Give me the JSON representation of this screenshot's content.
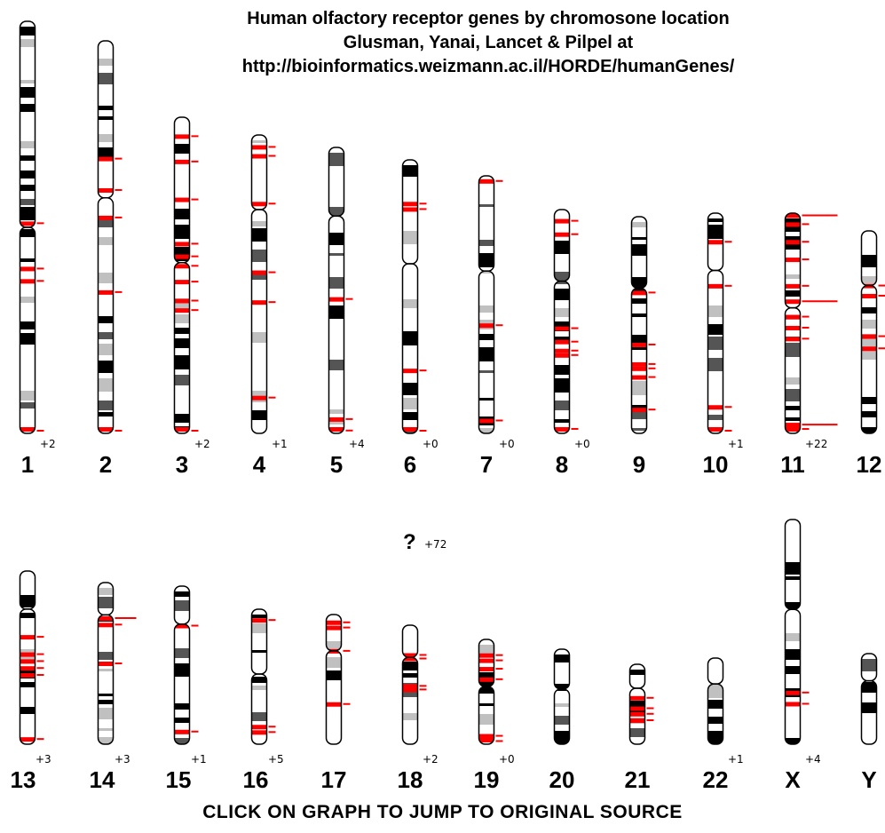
{
  "header": {
    "title_line1": "Human olfactory receptor genes by chromosone location",
    "title_line2": "Glusman, Yanai, Lancet & Pilpel at",
    "title_line3": "http://bioinformatics.weizmann.ac.il/HORDE/humanGenes/"
  },
  "footer": {
    "text": "CLICK ON GRAPH TO JUMP TO ORIGINAL SOURCE"
  },
  "unplaced": {
    "symbol": "?",
    "extra": "+72"
  },
  "colors": {
    "ink": "#000000",
    "dark_band": "#000000",
    "mid_band": "#555555",
    "light_band": "#c0c0c0",
    "gene": "#ff0000",
    "page": "#ffffff"
  },
  "chromosomes": [
    {
      "name": "1",
      "extra": "+2",
      "row": 0,
      "centromere": 0.5,
      "genes": [
        0.49,
        0.6,
        0.63,
        1.0
      ]
    },
    {
      "name": "2",
      "extra": "",
      "row": 0,
      "centromere": 0.4,
      "genes": [
        0.3,
        0.38,
        0.45,
        0.64,
        1.0
      ]
    },
    {
      "name": "3",
      "extra": "+2",
      "row": 0,
      "centromere": 0.46,
      "genes": [
        0.06,
        0.14,
        0.26,
        0.4,
        0.44,
        0.47,
        0.52,
        0.58,
        0.61,
        1.0
      ]
    },
    {
      "name": "4",
      "extra": "+1",
      "row": 0,
      "centromere": 0.25,
      "genes": [
        0.04,
        0.07,
        0.23,
        0.46,
        0.56,
        0.88
      ]
    },
    {
      "name": "5",
      "extra": "+4",
      "row": 0,
      "centromere": 0.24,
      "genes": [
        0.53,
        0.95,
        0.99
      ]
    },
    {
      "name": "6",
      "extra": "+0",
      "row": 0,
      "centromere": 0.38,
      "genes": [
        0.16,
        0.18,
        0.77,
        1.0
      ]
    },
    {
      "name": "7",
      "extra": "+0",
      "row": 0,
      "centromere": 0.37,
      "genes": [
        0.02,
        0.58,
        0.95
      ]
    },
    {
      "name": "8",
      "extra": "+0",
      "row": 0,
      "centromere": 0.32,
      "genes": [
        0.05,
        0.11,
        0.53,
        0.59,
        0.63,
        0.65,
        0.98
      ]
    },
    {
      "name": "9",
      "extra": "",
      "row": 0,
      "centromere": 0.33,
      "genes": [
        0.35,
        0.59,
        0.68,
        0.7,
        0.74,
        0.89
      ]
    },
    {
      "name": "10",
      "extra": "+1",
      "row": 0,
      "centromere": 0.26,
      "genes": [
        0.13,
        0.33,
        0.88,
        1.0
      ]
    },
    {
      "name": "11",
      "extra": "+22",
      "row": 0,
      "centromere": 0.43,
      "genes": [
        0.01,
        0.05,
        0.13,
        0.21,
        0.33,
        0.4,
        0.47,
        0.52,
        0.57,
        0.96,
        0.98
      ]
    },
    {
      "name": "12",
      "extra": "",
      "row": 0,
      "centromere": 0.27,
      "genes": [
        0.27,
        0.32,
        0.52,
        0.58
      ]
    },
    {
      "name": "13",
      "extra": "+3",
      "row": 1,
      "centromere": 0.22,
      "genes": [
        0.38,
        0.48,
        0.52,
        0.56,
        0.6,
        0.97
      ]
    },
    {
      "name": "14",
      "extra": "+3",
      "row": 1,
      "centromere": 0.2,
      "genes": [
        0.22,
        0.26,
        0.5
      ]
    },
    {
      "name": "15",
      "extra": "+1",
      "row": 1,
      "centromere": 0.24,
      "genes": [
        0.25,
        0.92
      ]
    },
    {
      "name": "16",
      "extra": "+5",
      "row": 1,
      "centromere": 0.48,
      "genes": [
        0.08,
        0.87,
        0.91
      ]
    },
    {
      "name": "17",
      "extra": "",
      "row": 1,
      "centromere": 0.28,
      "genes": [
        0.06,
        0.1,
        0.28,
        0.69
      ]
    },
    {
      "name": "18",
      "extra": "+2",
      "row": 1,
      "centromere": 0.27,
      "genes": [
        0.25,
        0.28,
        0.51,
        0.54
      ]
    },
    {
      "name": "19",
      "extra": "+0",
      "row": 1,
      "centromere": 0.45,
      "genes": [
        0.15,
        0.2,
        0.28,
        0.38,
        0.92,
        0.97
      ]
    },
    {
      "name": "20",
      "extra": "",
      "row": 1,
      "centromere": 0.42,
      "genes": []
    },
    {
      "name": "21",
      "extra": "",
      "row": 1,
      "centromere": 0.3,
      "genes": [
        0.42,
        0.55,
        0.62,
        0.7
      ]
    },
    {
      "name": "22",
      "extra": "+1",
      "row": 1,
      "centromere": 0.3,
      "genes": []
    },
    {
      "name": "X",
      "extra": "+4",
      "row": 1,
      "centromere": 0.4,
      "genes": [
        0.77,
        0.82
      ]
    },
    {
      "name": "Y",
      "extra": "",
      "row": 1,
      "centromere": 0.3,
      "genes": []
    }
  ]
}
